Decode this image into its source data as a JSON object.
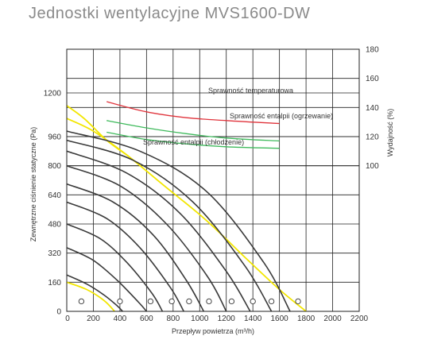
{
  "header": {
    "title": "Jednostki wentylacyjne MVS1600-DW"
  },
  "chart_data": {
    "type": "line",
    "xlabel": "Przepływ powietrza (m³/h)",
    "ylabel": "Zewnętrzne ciśnienie statyczne (Pa)",
    "y2label": "Wydajność (%)",
    "xlim": [
      0,
      2200
    ],
    "ylim": [
      0,
      1440
    ],
    "y2lim": [
      0,
      180
    ],
    "x_ticks": [
      200,
      400,
      600,
      800,
      1000,
      1200,
      1400,
      1600,
      1800,
      2000,
      2200
    ],
    "x_tick_labels": [
      "200",
      "400",
      "600",
      "800",
      "1000",
      "1200",
      "1400",
      "1600",
      "1800",
      "2000",
      "2200"
    ],
    "y_ticks": [
      0,
      160,
      320,
      480,
      640,
      800,
      960,
      1200
    ],
    "y_tick_labels": [
      "0",
      "160",
      "320",
      "480",
      "640",
      "800",
      "960",
      "1200"
    ],
    "y2_ticks": [
      100,
      120,
      140,
      160,
      180
    ],
    "y2_tick_labels": [
      "100",
      "120",
      "140",
      "160",
      "180"
    ],
    "grid": true,
    "colors": {
      "fan": "#3a3a3a",
      "limit": "#f2e600",
      "temperature": "#e0343c",
      "enthalpy": "#3fba5c"
    },
    "fan_curves": [
      {
        "values": [
          [
            0,
            200
          ],
          [
            150,
            150
          ],
          [
            280,
            90
          ],
          [
            380,
            30
          ],
          [
            420,
            0
          ]
        ]
      },
      {
        "values": [
          [
            0,
            350
          ],
          [
            200,
            280
          ],
          [
            380,
            170
          ],
          [
            540,
            50
          ],
          [
            600,
            0
          ]
        ]
      },
      {
        "values": [
          [
            0,
            480
          ],
          [
            250,
            400
          ],
          [
            450,
            270
          ],
          [
            640,
            100
          ],
          [
            720,
            0
          ]
        ]
      },
      {
        "values": [
          [
            0,
            600
          ],
          [
            300,
            510
          ],
          [
            550,
            350
          ],
          [
            780,
            130
          ],
          [
            880,
            0
          ]
        ]
      },
      {
        "values": [
          [
            0,
            700
          ],
          [
            350,
            600
          ],
          [
            650,
            420
          ],
          [
            900,
            170
          ],
          [
            1030,
            0
          ]
        ]
      },
      {
        "values": [
          [
            0,
            800
          ],
          [
            400,
            690
          ],
          [
            750,
            480
          ],
          [
            1060,
            190
          ],
          [
            1200,
            0
          ]
        ]
      },
      {
        "values": [
          [
            0,
            880
          ],
          [
            450,
            760
          ],
          [
            850,
            540
          ],
          [
            1200,
            220
          ],
          [
            1380,
            0
          ]
        ]
      },
      {
        "values": [
          [
            0,
            940
          ],
          [
            500,
            830
          ],
          [
            950,
            600
          ],
          [
            1340,
            250
          ],
          [
            1540,
            0
          ]
        ]
      },
      {
        "values": [
          [
            0,
            990
          ],
          [
            550,
            880
          ],
          [
            1050,
            660
          ],
          [
            1480,
            270
          ],
          [
            1680,
            0
          ]
        ]
      }
    ],
    "limit_curves": [
      {
        "values": [
          [
            0,
            1060
          ],
          [
            200,
            990
          ],
          [
            450,
            860
          ],
          [
            750,
            680
          ],
          [
            1050,
            500
          ],
          [
            1350,
            290
          ],
          [
            1600,
            120
          ],
          [
            1800,
            0
          ]
        ]
      },
      {
        "values": [
          [
            0,
            160
          ],
          [
            150,
            120
          ],
          [
            280,
            60
          ],
          [
            360,
            0
          ]
        ]
      },
      {
        "values": [
          [
            0,
            1130
          ],
          [
            130,
            1060
          ],
          [
            300,
            940
          ],
          [
            450,
            860
          ]
        ]
      }
    ],
    "efficiency_series": [
      {
        "name": "Sprawność temperaturowa",
        "color": "#e0343c",
        "values": [
          [
            300,
            144
          ],
          [
            600,
            137
          ],
          [
            900,
            133
          ],
          [
            1200,
            131
          ],
          [
            1600,
            129
          ]
        ]
      },
      {
        "name": "Sprawność entalpii (ogrzewanie)",
        "color": "#3fba5c",
        "values": [
          [
            300,
            131
          ],
          [
            600,
            126
          ],
          [
            900,
            122
          ],
          [
            1200,
            119
          ],
          [
            1600,
            117
          ]
        ]
      },
      {
        "name": "Sprawność entalpii (chłodzenie)",
        "color": "#3fba5c",
        "values": [
          [
            300,
            123
          ],
          [
            600,
            118
          ],
          [
            900,
            115
          ],
          [
            1200,
            113
          ],
          [
            1600,
            112
          ]
        ]
      }
    ],
    "markers": [
      [
        110,
        55
      ],
      [
        400,
        55
      ],
      [
        630,
        55
      ],
      [
        790,
        55
      ],
      [
        920,
        55
      ],
      [
        1070,
        55
      ],
      [
        1240,
        55
      ],
      [
        1400,
        55
      ],
      [
        1540,
        55
      ],
      [
        1740,
        55
      ]
    ]
  }
}
